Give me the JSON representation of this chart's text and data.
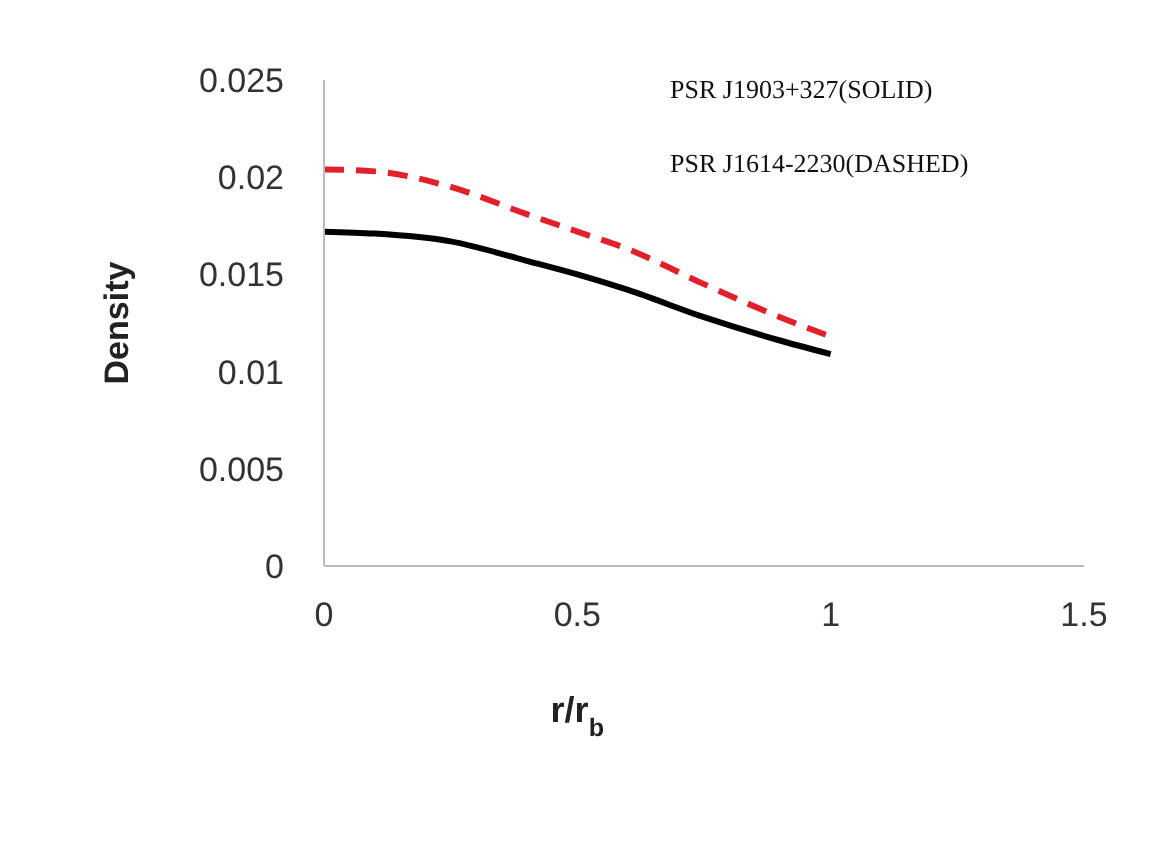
{
  "chart_data": {
    "type": "line",
    "xlabel": "r/r$_{b}$",
    "ylabel": "Density",
    "x": [
      0,
      0.1,
      0.25,
      0.4,
      0.5,
      0.6,
      0.75,
      0.9,
      1
    ],
    "series": [
      {
        "color": "#000000",
        "line_style": "solid",
        "values": [
          0.0172,
          0.0171,
          0.0167,
          0.0157,
          0.015,
          0.0142,
          0.0128,
          0.0116,
          0.0109
        ]
      },
      {
        "color": "#e0202a",
        "line_style": "dashed",
        "values": [
          0.0204,
          0.0203,
          0.0195,
          0.0181,
          0.0172,
          0.0163,
          0.0145,
          0.0128,
          0.0118
        ]
      }
    ],
    "xlim": [
      0,
      1.5
    ],
    "xticks": [
      0,
      0.5,
      1,
      1.5
    ],
    "ylim": [
      0,
      0.025
    ],
    "yticks": [
      0,
      0.005,
      0.01,
      0.015,
      0.02,
      0.025
    ],
    "grid": false,
    "legend": false,
    "marker": "none",
    "annotations": [
      "PSR J1903+327(SOLID)",
      "PSR J1614-2230(DASHED)"
    ]
  }
}
